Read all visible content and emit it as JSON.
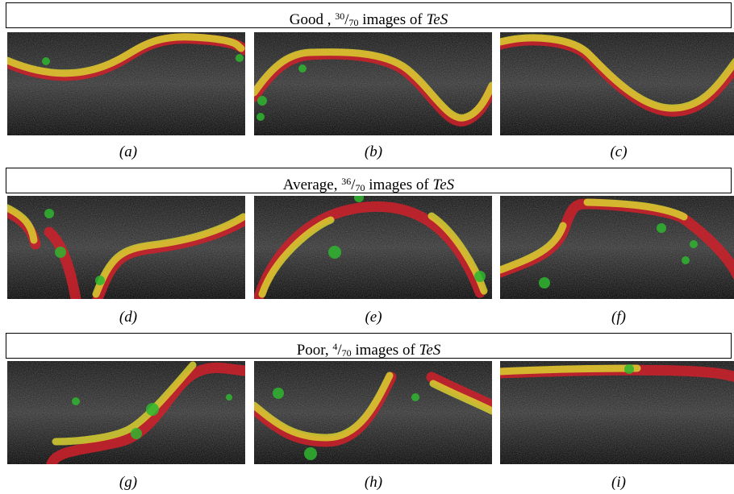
{
  "sections": [
    {
      "label": "Good ,",
      "num": "30",
      "den": "70",
      "text": "images of",
      "dataset": "TeS",
      "captions": [
        "(a)",
        "(b)",
        "(c)"
      ]
    },
    {
      "label": "Average,",
      "num": "36",
      "den": "70",
      "text": "images of",
      "dataset": "TeS",
      "captions": [
        "(d)",
        "(e)",
        "(f)"
      ]
    },
    {
      "label": "Poor,",
      "num": "4",
      "den": "70",
      "text": "images of",
      "dataset": "TeS",
      "captions": [
        "(g)",
        "(h)",
        "(i)"
      ]
    }
  ]
}
